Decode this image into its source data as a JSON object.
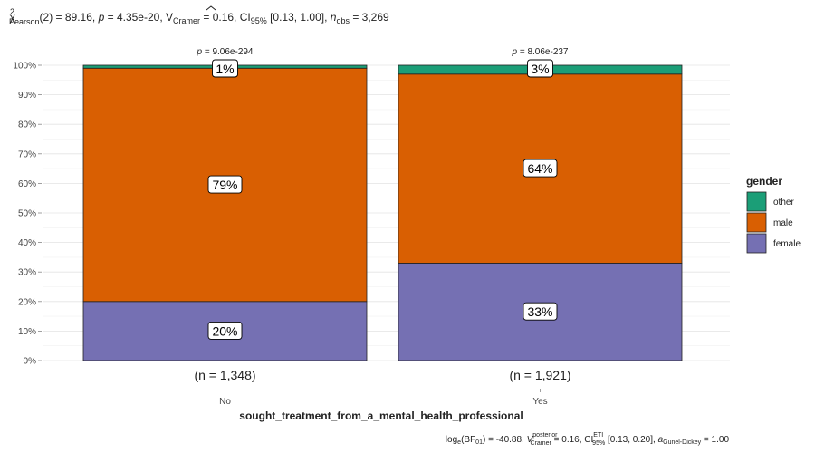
{
  "chart_data": {
    "type": "bar",
    "stacked": true,
    "subtitle": {
      "stat": "χ",
      "stat_sup": "2",
      "stat_sub": "Pearson",
      "df_text": "(2) = 89.16, ",
      "p_symbol": "p",
      "p_text": " = 4.35e-20, ",
      "v_symbol": "V",
      "v_sub": "Cramer",
      "v_text": " = 0.16, CI",
      "ci_sub": "95%",
      "ci_text": " [0.13, 1.00], ",
      "n_symbol": "n",
      "n_sub": "obs",
      "n_text": " = 3,269"
    },
    "caption": {
      "log_text": "log",
      "log_sub": "e",
      "bf_text": "(BF",
      "bf_sub": "01",
      "bf_val": ") = -40.88, ",
      "v_symbol": "V",
      "v_sup": "posterior",
      "v_sub": "Cramer",
      "v_text": " = 0.16, CI",
      "ci_sup": "ETI",
      "ci_sub": "95%",
      "ci_text": " [0.13, 0.20], ",
      "a_symbol": "a",
      "a_sub": "Gunel-Dickey",
      "a_text": " = 1.00"
    },
    "xlabel": "sought_treatment_from_a_mental_health_professional",
    "ylabel": "",
    "ylim": [
      0,
      100
    ],
    "yticks": [
      0,
      10,
      20,
      30,
      40,
      50,
      60,
      70,
      80,
      90,
      100
    ],
    "ytick_suffix": "%",
    "categories": [
      "No",
      "Yes"
    ],
    "counts": [
      "(n = 1,348)",
      "(n = 1,921)"
    ],
    "pvalues": [
      "p = 9.06e-294",
      "p = 8.06e-237"
    ],
    "series": [
      {
        "name": "female",
        "values": [
          20,
          33
        ],
        "labels": [
          "20%",
          "33%"
        ]
      },
      {
        "name": "male",
        "values": [
          79,
          64
        ],
        "labels": [
          "79%",
          "64%"
        ]
      },
      {
        "name": "other",
        "values": [
          1,
          3
        ],
        "labels": [
          "1%",
          "3%"
        ]
      }
    ],
    "legend": {
      "title": "gender",
      "placement": "right",
      "order": [
        "other",
        "male",
        "female"
      ]
    },
    "colors": {
      "female": "#7570b3",
      "male": "#d95f02",
      "other": "#1b9e77"
    },
    "grid": true
  }
}
